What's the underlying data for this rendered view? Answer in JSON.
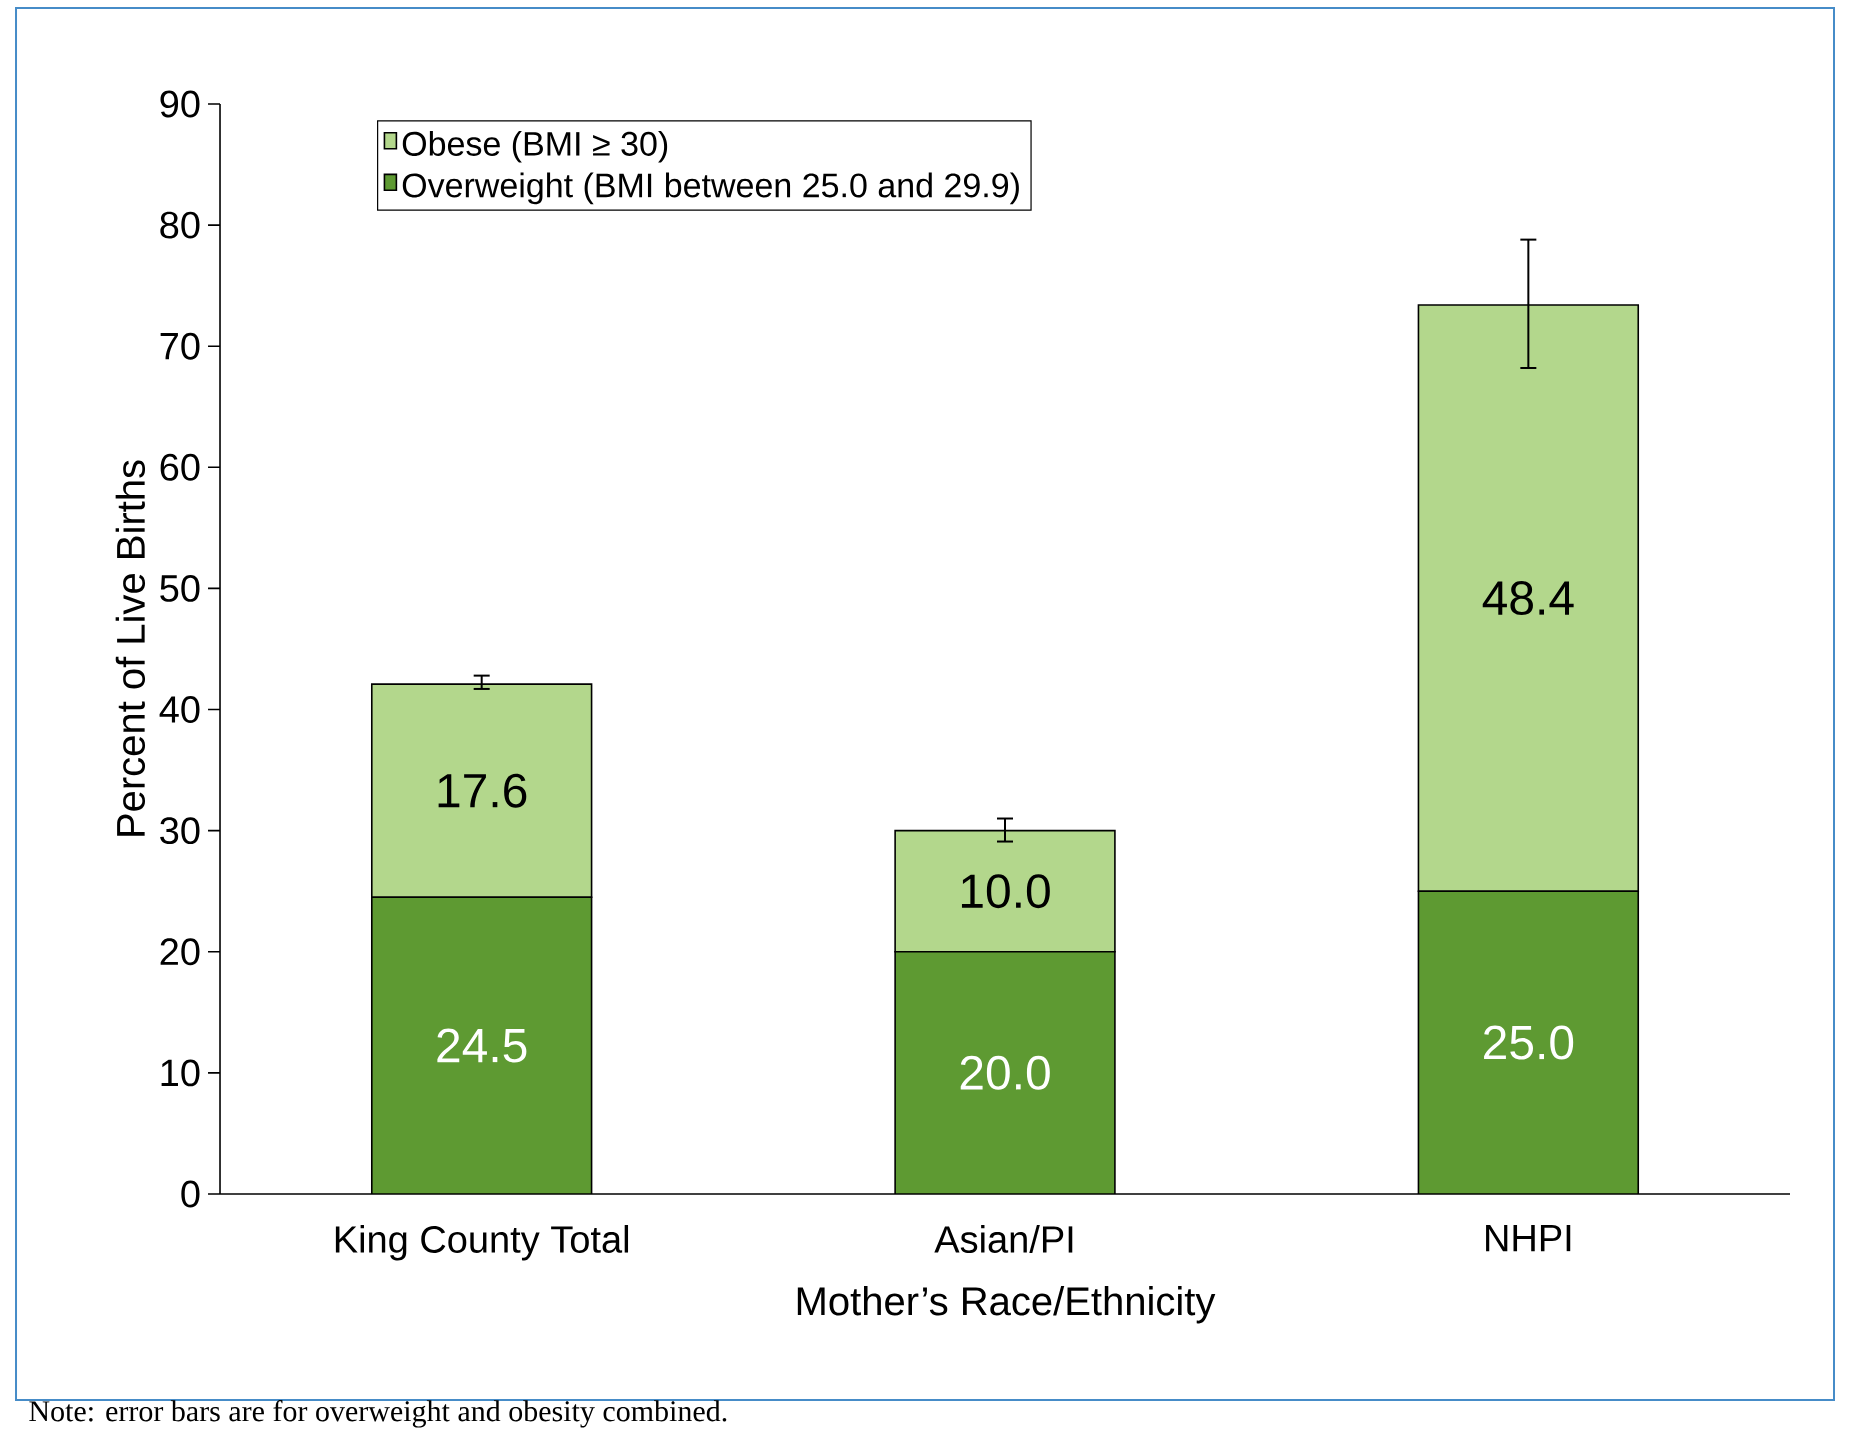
{
  "chart_data": {
    "type": "bar",
    "stacked": true,
    "xlabel": "Mother’s Race/Ethnicity",
    "ylabel": "Percent of Live Births",
    "categories": [
      "King County Total",
      "Asian/PI",
      "NHPI"
    ],
    "series": [
      {
        "name": "Overweight (BMI between 25.0 and 29.9)",
        "color": "#5e9a32",
        "values": [
          24.5,
          20.0,
          25.0
        ],
        "value_labels": [
          "24.5",
          "20.0",
          "25.0"
        ]
      },
      {
        "name": "Obese (BMI ≥ 30)",
        "color": "#b3d78c",
        "values": [
          17.6,
          10.0,
          48.4
        ],
        "value_labels": [
          "17.6",
          "10.0",
          "48.4"
        ],
        "errors": [
          [
            41.7,
            42.8
          ],
          [
            29.1,
            31.0
          ],
          [
            68.2,
            78.8
          ]
        ]
      }
    ],
    "ylim": [
      0,
      90
    ],
    "yticks": [
      0,
      10,
      20,
      30,
      40,
      50,
      60,
      70,
      80,
      90
    ],
    "legend": "top left",
    "grid": false,
    "annotations": [
      "Note:  error bars are for overweight and obesity combined."
    ]
  }
}
